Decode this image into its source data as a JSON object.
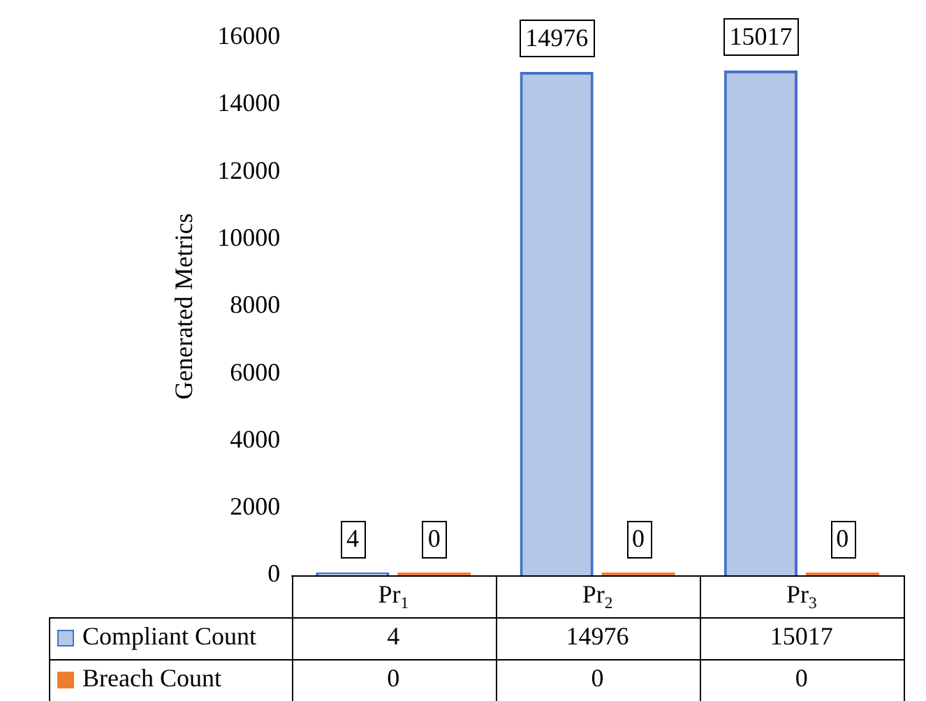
{
  "chart_data": {
    "type": "bar",
    "ylabel": "Generated Metrics",
    "categories": [
      "Pr$_{1}$",
      "Pr$_{2}$",
      "Pr$_{3}$"
    ],
    "series": [
      {
        "name": "Compliant Count",
        "color": "#4472c4",
        "values": [
          4,
          14976,
          15017
        ]
      },
      {
        "name": "Breach Count",
        "color": "#ed7d31",
        "values": [
          0,
          0,
          0
        ]
      }
    ],
    "ylim": [
      0,
      16000
    ],
    "yticks": [
      0,
      2000,
      4000,
      6000,
      8000,
      10000,
      12000,
      14000,
      16000
    ],
    "grid": false,
    "legend": "bottom",
    "data_labels": true,
    "annotations": [
      "4",
      "14976",
      "15017",
      "0",
      "0",
      "0"
    ]
  }
}
